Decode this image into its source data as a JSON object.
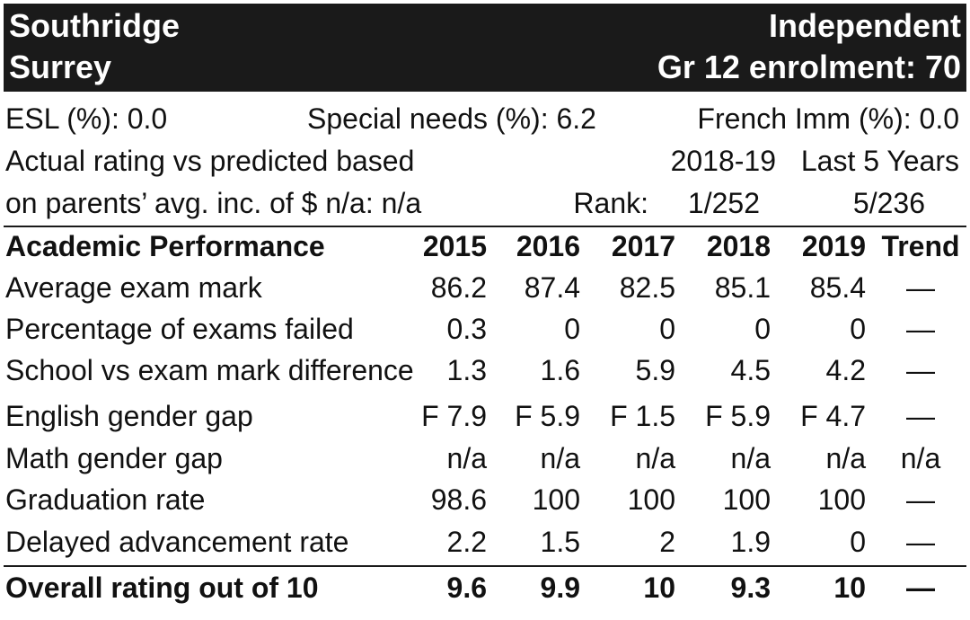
{
  "header": {
    "school_name": "Southridge",
    "city": "Surrey",
    "school_type": "Independent",
    "enrolment": "Gr 12 enrolment: 70"
  },
  "stats": {
    "esl": "ESL (%): 0.0",
    "special_needs": "Special needs (%): 6.2",
    "french_imm": "French Imm (%): 0.0"
  },
  "rating_info": {
    "line1": "Actual rating vs predicted based",
    "line2": "on parents’ avg. inc. of $ n/a: n/a",
    "period_current": "2018-19",
    "period_last5": "Last 5 Years",
    "rank_label": "Rank:",
    "rank_current": "1/252",
    "rank_last5": "5/236"
  },
  "table": {
    "header": {
      "label": "Academic Performance",
      "years": [
        "2015",
        "2016",
        "2017",
        "2018",
        "2019"
      ],
      "trend": "Trend"
    },
    "rows": [
      {
        "label": "Average exam mark",
        "values": [
          "86.2",
          "87.4",
          "82.5",
          "85.1",
          "85.4"
        ],
        "trend": "—"
      },
      {
        "label": "Percentage of exams failed",
        "values": [
          "0.3",
          "0",
          "0",
          "0",
          "0"
        ],
        "trend": "—"
      },
      {
        "label": "School vs exam mark difference",
        "values": [
          "1.3",
          "1.6",
          "5.9",
          "4.5",
          "4.2"
        ],
        "trend": "—"
      },
      {
        "label": "English gender gap",
        "values": [
          "F 7.9",
          "F 5.9",
          "F 1.5",
          "F 5.9",
          "F 4.7"
        ],
        "trend": "—"
      },
      {
        "label": "Math gender gap",
        "values": [
          "n/a",
          "n/a",
          "n/a",
          "n/a",
          "n/a"
        ],
        "trend": "n/a"
      },
      {
        "label": "Graduation rate",
        "values": [
          "98.6",
          "100",
          "100",
          "100",
          "100"
        ],
        "trend": "—"
      },
      {
        "label": "Delayed advancement rate",
        "values": [
          "2.2",
          "1.5",
          "2",
          "1.9",
          "0"
        ],
        "trend": "—"
      }
    ],
    "overall": {
      "label": "Overall rating out of 10",
      "values": [
        "9.6",
        "9.9",
        "10",
        "9.3",
        "10"
      ],
      "trend": "—"
    }
  }
}
